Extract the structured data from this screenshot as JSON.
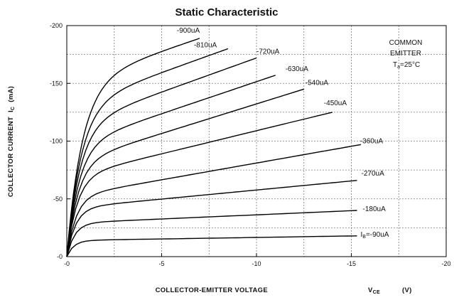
{
  "chart_data": {
    "type": "line",
    "title": "Static Characteristic",
    "xlabel": "COLLECTOR-EMITTER VOLTAGE",
    "xlabel_symbol": "V",
    "xlabel_subscript": "CE",
    "xlabel_unit": "(V)",
    "ylabel": "COLLECTOR CURRENT",
    "ylabel_symbol": "I",
    "ylabel_subscript": "C",
    "ylabel_unit": "(mA)",
    "xlim": [
      0,
      -20
    ],
    "ylim": [
      0,
      -200
    ],
    "x_ticks": [
      0,
      -5,
      -10,
      -15,
      -20
    ],
    "x_tick_labels": [
      "-0",
      "-5",
      "-10",
      "-15",
      "-20"
    ],
    "y_ticks": [
      0,
      -50,
      -100,
      -150,
      -200
    ],
    "y_tick_labels": [
      "-0",
      "-50",
      "-100",
      "-150",
      "-200"
    ],
    "grid": "dashed",
    "annotation": {
      "line1": "COMMON",
      "line2": "EMITTER",
      "line3_symbol": "T",
      "line3_subscript": "a",
      "line3_value": "=25°C"
    },
    "series": [
      {
        "name": "-900uA",
        "knee": -150,
        "plateau_end": -189,
        "x_end": -7.0
      },
      {
        "name": "-810uA",
        "knee": -130,
        "plateau_end": -180,
        "x_end": -8.5
      },
      {
        "name": "-720uA",
        "knee": -113,
        "plateau_end": -172,
        "x_end": -10.0
      },
      {
        "name": "-630uA",
        "knee": -96,
        "plateau_end": -157,
        "x_end": -11.0
      },
      {
        "name": "-540uA",
        "knee": -81,
        "plateau_end": -145,
        "x_end": -12.5
      },
      {
        "name": "-450uA",
        "knee": -69,
        "plateau_end": -125,
        "x_end": -14.0
      },
      {
        "name": "-360uA",
        "knee": -52,
        "plateau_end": -97,
        "x_end": -15.5
      },
      {
        "name": "-270uA",
        "knee": -42,
        "plateau_end": -66,
        "x_end": -15.3
      },
      {
        "name": "-180uA",
        "knee": -29,
        "plateau_end": -40,
        "x_end": -15.3
      },
      {
        "name": "-90uA",
        "knee": -14,
        "plateau_end": -18,
        "x_end": -15.3
      }
    ],
    "curve_labels": [
      {
        "text": "-900uA",
        "series": 0
      },
      {
        "text": "-810uA",
        "series": 1
      },
      {
        "text": "-720uA",
        "series": 2
      },
      {
        "text": "-630uA",
        "series": 3
      },
      {
        "text": "-540uA",
        "series": 4
      },
      {
        "text": "-450uA",
        "series": 5
      },
      {
        "text": "-360uA",
        "series": 6
      },
      {
        "text": "-270uA",
        "series": 7
      },
      {
        "text": "-180uA",
        "series": 8
      },
      {
        "text_symbol": "I",
        "text_subscript": "B",
        "text_value": "=-90uA",
        "series": 9
      }
    ]
  }
}
